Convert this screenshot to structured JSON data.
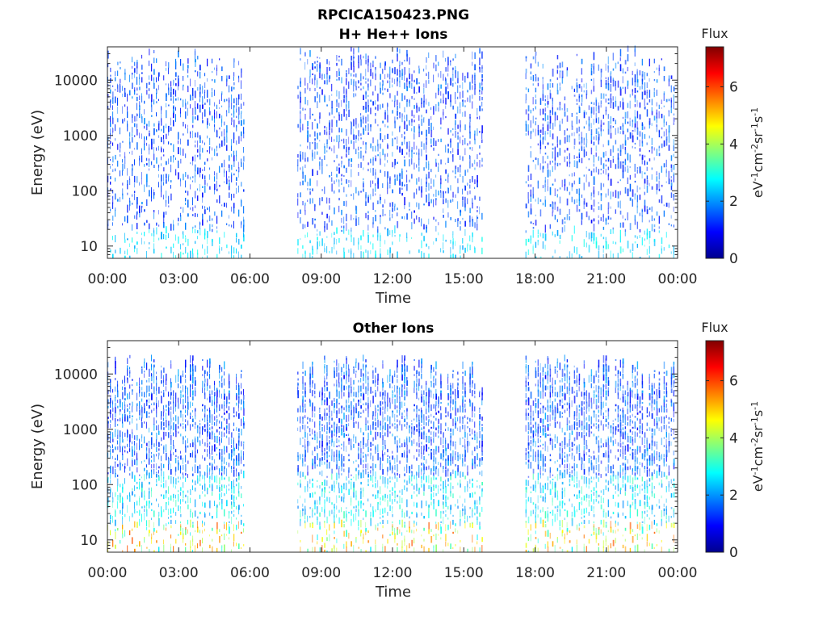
{
  "figure_title": "RPCICA150423.PNG",
  "chart_data": [
    {
      "type": "heatmap",
      "title": "H+ He++ Ions",
      "xlabel": "Time",
      "ylabel": "Energy (eV)",
      "y_scale": "log",
      "x_ticks": [
        "00:00",
        "03:00",
        "06:00",
        "09:00",
        "12:00",
        "15:00",
        "18:00",
        "21:00",
        "00:00"
      ],
      "x_range_hours": [
        0,
        24
      ],
      "y_ticks": [
        "10",
        "100",
        "1000",
        "10000"
      ],
      "y_range": [
        6,
        40000
      ],
      "data_intervals_hours": [
        [
          0,
          5.8
        ],
        [
          8.0,
          15.8
        ],
        [
          17.6,
          23.9
        ]
      ],
      "colorbar": {
        "title": "Flux",
        "unit": "eV-1cm-2sr-1s-1",
        "ticks": [
          "0",
          "2",
          "4",
          "6"
        ],
        "range": [
          0,
          7.4
        ],
        "colormap": "jet"
      },
      "intensity": "low (blue/cyan), highest at lowest energies",
      "grid": false
    },
    {
      "type": "heatmap",
      "title": "Other Ions",
      "xlabel": "Time",
      "ylabel": "Energy (eV)",
      "y_scale": "log",
      "x_ticks": [
        "00:00",
        "03:00",
        "06:00",
        "09:00",
        "12:00",
        "15:00",
        "18:00",
        "21:00",
        "00:00"
      ],
      "x_range_hours": [
        0,
        24
      ],
      "y_ticks": [
        "10",
        "100",
        "1000",
        "10000"
      ],
      "y_range": [
        6,
        40000
      ],
      "data_intervals_hours": [
        [
          0,
          5.8
        ],
        [
          8.0,
          15.8
        ],
        [
          17.6,
          23.9
        ]
      ],
      "colorbar": {
        "title": "Flux",
        "unit": "eV-1cm-2sr-1s-1",
        "ticks": [
          "0",
          "2",
          "4",
          "6"
        ],
        "range": [
          0,
          7.4
        ],
        "colormap": "jet"
      },
      "intensity": "higher (green/yellow/orange) below 100 eV",
      "grid": false
    }
  ]
}
